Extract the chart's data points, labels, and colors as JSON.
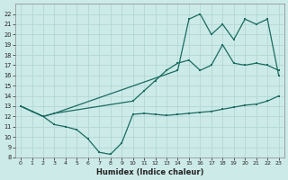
{
  "xlabel": "Humidex (Indice chaleur)",
  "background_color": "#cceae8",
  "grid_color": "#b2d8d4",
  "line_color": "#1a6b60",
  "xlim": [
    -0.5,
    23.5
  ],
  "ylim": [
    8,
    23
  ],
  "xticks": [
    0,
    1,
    2,
    3,
    4,
    5,
    6,
    7,
    8,
    9,
    10,
    11,
    12,
    13,
    14,
    15,
    16,
    17,
    18,
    19,
    20,
    21,
    22,
    23
  ],
  "yticks": [
    8,
    9,
    10,
    11,
    12,
    13,
    14,
    15,
    16,
    17,
    18,
    19,
    20,
    21,
    22
  ],
  "line1_x": [
    0,
    1,
    2,
    3,
    4,
    5,
    6,
    7,
    8,
    9,
    10,
    11,
    12,
    13,
    14,
    15,
    16,
    17,
    18,
    19,
    20,
    21,
    22,
    23
  ],
  "line1_y": [
    13,
    12.5,
    12,
    11.2,
    11.0,
    10.7,
    9.8,
    8.5,
    8.3,
    9.4,
    12.2,
    12.3,
    12.2,
    12.1,
    12.2,
    12.3,
    12.4,
    12.5,
    12.7,
    12.9,
    13.1,
    13.2,
    13.5,
    14.0
  ],
  "line2_x": [
    0,
    1,
    2,
    3,
    10,
    11,
    12,
    13,
    14,
    15,
    16,
    17,
    18,
    19,
    20,
    21,
    22,
    23
  ],
  "line2_y": [
    13,
    12.5,
    12,
    12.3,
    13.5,
    14.5,
    15.5,
    16.5,
    17.2,
    17.5,
    16.5,
    17.0,
    19.0,
    17.2,
    17.0,
    17.2,
    17.0,
    16.5
  ],
  "line3_x": [
    0,
    1,
    2,
    3,
    14,
    15,
    16,
    17,
    18,
    19,
    20,
    21,
    22,
    23
  ],
  "line3_y": [
    13,
    12.5,
    12,
    12.3,
    16.5,
    21.5,
    22.0,
    20.0,
    21.0,
    19.5,
    21.5,
    21.0,
    21.5,
    16.0
  ]
}
